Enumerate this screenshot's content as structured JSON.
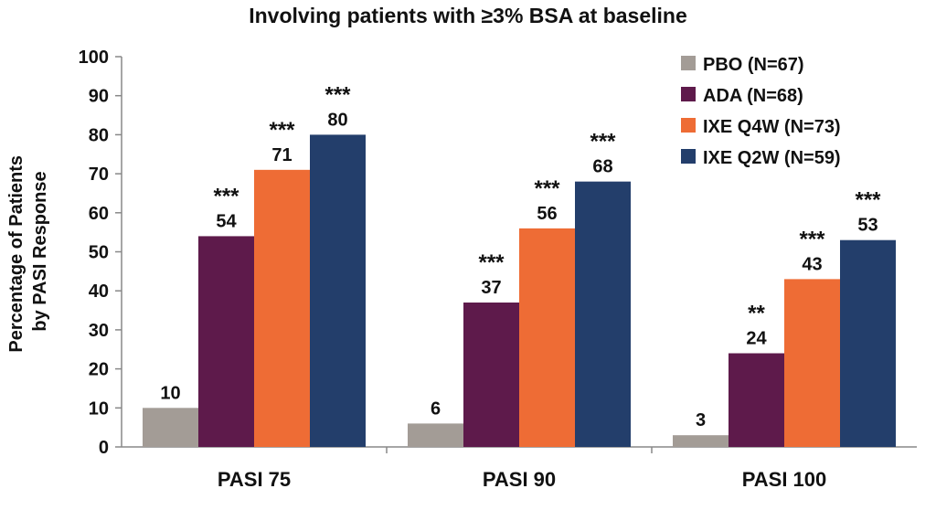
{
  "chart_data": {
    "type": "bar",
    "title": "Involving patients with ≥3% BSA at baseline",
    "ylabel_lines": [
      "Percentage of Patients",
      "by PASI Response"
    ],
    "xlabel": "",
    "ylim": [
      0,
      100
    ],
    "yticks": [
      0,
      10,
      20,
      30,
      40,
      50,
      60,
      70,
      80,
      90,
      100
    ],
    "categories": [
      "PASI 75",
      "PASI 90",
      "PASI 100"
    ],
    "legend_position": "top-right",
    "grid": false,
    "series": [
      {
        "name": "PBO (N=67)",
        "color": "#a39c96",
        "values": [
          10,
          6,
          3
        ],
        "value_labels": [
          "10",
          "6",
          "3"
        ],
        "significance": [
          "",
          "",
          ""
        ]
      },
      {
        "name": "ADA (N=68)",
        "color": "#5e1a4b",
        "values": [
          54,
          37,
          24
        ],
        "value_labels": [
          "54",
          "37",
          "24"
        ],
        "significance": [
          "***",
          "***",
          "**"
        ]
      },
      {
        "name": "IXE Q4W (N=73)",
        "color": "#ee6c35",
        "values": [
          71,
          56,
          43
        ],
        "value_labels": [
          "71",
          "56",
          "43"
        ],
        "significance": [
          "***",
          "***",
          "***"
        ]
      },
      {
        "name": "IXE Q2W (N=59)",
        "color": "#233e6b",
        "values": [
          80,
          68,
          53
        ],
        "value_labels": [
          "80",
          "68",
          "53"
        ],
        "significance": [
          "***",
          "***",
          "***"
        ]
      }
    ]
  }
}
